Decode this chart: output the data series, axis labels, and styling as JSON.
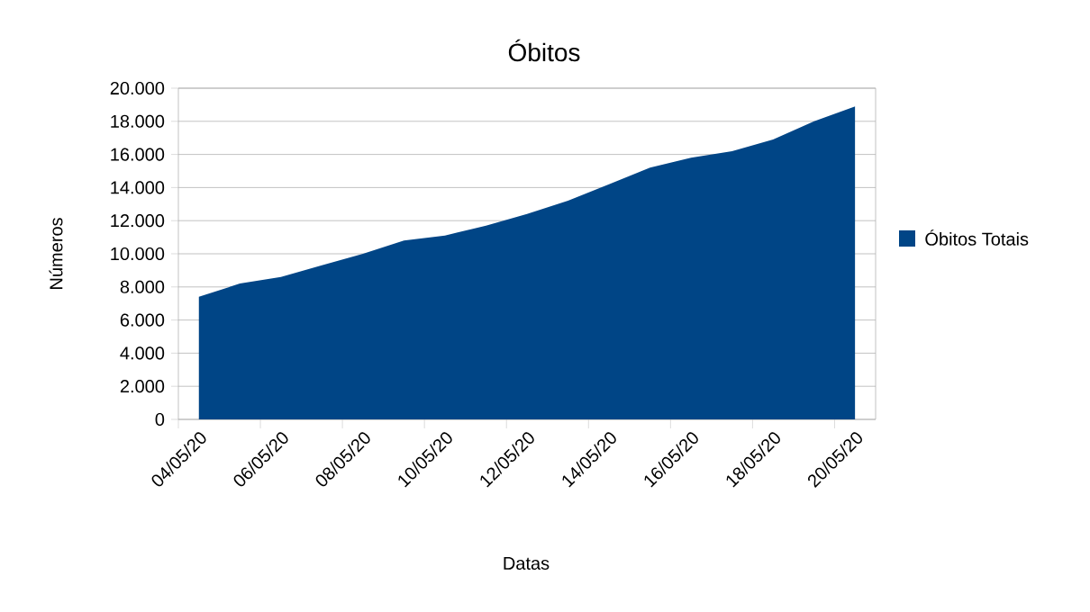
{
  "chart_data": {
    "type": "area",
    "title": "Óbitos",
    "xlabel": "Datas",
    "ylabel": "Números",
    "categories": [
      "04/05/20",
      null,
      "06/05/20",
      null,
      "08/05/20",
      null,
      "10/05/20",
      null,
      "12/05/20",
      null,
      "14/05/20",
      null,
      "16/05/20",
      null,
      "18/05/20",
      null,
      "20/05/20"
    ],
    "series": [
      {
        "name": "Óbitos Totais",
        "color": "#004586",
        "values": [
          7400,
          8200,
          8600,
          9300,
          10000,
          10800,
          11100,
          11700,
          12400,
          13200,
          14200,
          15200,
          15800,
          16200,
          16900,
          18000,
          18900
        ]
      }
    ],
    "ylim": [
      0,
      20000
    ],
    "yticks": [
      {
        "value": 0,
        "label": "0"
      },
      {
        "value": 2000,
        "label": "2.000"
      },
      {
        "value": 4000,
        "label": "4.000"
      },
      {
        "value": 6000,
        "label": "6.000"
      },
      {
        "value": 8000,
        "label": "8.000"
      },
      {
        "value": 10000,
        "label": "10.000"
      },
      {
        "value": 12000,
        "label": "12.000"
      },
      {
        "value": 14000,
        "label": "14.000"
      },
      {
        "value": 16000,
        "label": "16.000"
      },
      {
        "value": 18000,
        "label": "18.000"
      },
      {
        "value": 20000,
        "label": "20.000"
      }
    ],
    "grid": "y",
    "legend": "right"
  }
}
